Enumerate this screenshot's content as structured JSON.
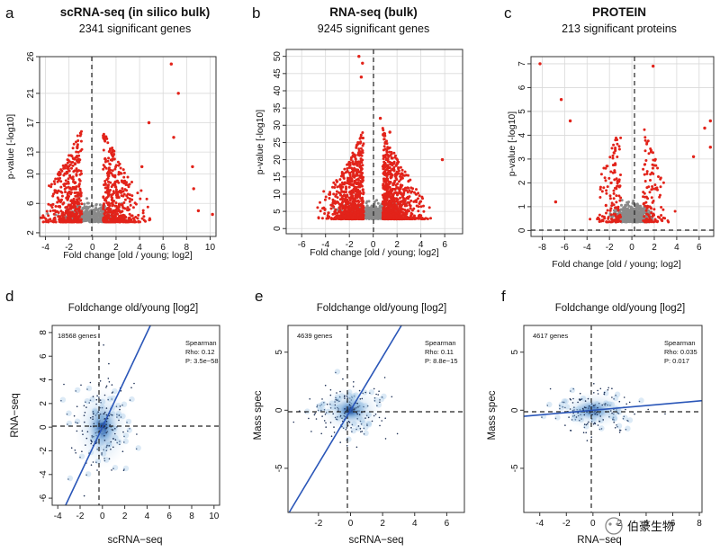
{
  "figure": {
    "colors": {
      "significant": "#e2231a",
      "nonsignificant": "#8a8a8a",
      "density": "#5b9bd5",
      "fit_line": "#2a56b8"
    },
    "panels": [
      {
        "letter": "a",
        "title": "scRNA-seq (in silico bulk)",
        "subtitle": "2341 significant genes"
      },
      {
        "letter": "b",
        "title": "RNA-seq (bulk)",
        "subtitle": "9245 significant genes"
      },
      {
        "letter": "c",
        "title": "PROTEIN",
        "subtitle": "213 significant proteins"
      },
      {
        "letter": "d",
        "title": "Foldchange old/young [log2]",
        "genes": "18568 genes",
        "method": "Spearman",
        "rho": "Rho: 0.12",
        "p": "P: 3.5e−58"
      },
      {
        "letter": "e",
        "title": "Foldchange old/young [log2]",
        "genes": "4639 genes",
        "method": "Spearman",
        "rho": "Rho: 0.11",
        "p": "P: 8.8e−15"
      },
      {
        "letter": "f",
        "title": "Foldchange old/young [log2]",
        "genes": "4617 genes",
        "method": "Spearman",
        "rho": "Rho: 0.035",
        "p": "P: 0.017"
      }
    ],
    "watermark": "伯豪生物"
  },
  "chart_data": [
    {
      "type": "scatter",
      "name": "volcano-scRNA-seq",
      "xlabel": "Fold change [old / young; log2]",
      "ylabel": "p-value [-log10]",
      "xlim": [
        -4.5,
        10.5
      ],
      "ylim": [
        1.5,
        26
      ],
      "xticks": [
        "-4",
        "-2",
        "0",
        "2",
        "4",
        "6",
        "8",
        "10"
      ],
      "yticks": [
        "2",
        "6",
        "10",
        "13",
        "17",
        "21",
        "26"
      ],
      "significant_count": 2341
    },
    {
      "type": "scatter",
      "name": "volcano-RNA-seq-bulk",
      "xlabel": "Fold change [old / young; log2]",
      "ylabel": "p-value [-log10]",
      "xlim": [
        -7.3,
        7.5
      ],
      "ylim": [
        -1.5,
        52
      ],
      "xticks": [
        "-6",
        "-4",
        "-2",
        "0",
        "2",
        "4",
        "6"
      ],
      "yticks": [
        "0",
        "5",
        "10",
        "15",
        "20",
        "25",
        "30",
        "35",
        "40",
        "45",
        "50"
      ],
      "significant_count": 9245
    },
    {
      "type": "scatter",
      "name": "volcano-protein",
      "xlabel": "Fold change [old / young; log2]",
      "ylabel": "p-value [-log10]",
      "xlim": [
        -9,
        7.3
      ],
      "ylim": [
        -0.25,
        7.3
      ],
      "xticks": [
        "-8",
        "-6",
        "-4",
        "-2",
        "0",
        "2",
        "4",
        "6"
      ],
      "yticks": [
        "0",
        "1",
        "2",
        "3",
        "4",
        "5",
        "6",
        "7"
      ],
      "significant_count": 213
    },
    {
      "type": "scatter",
      "name": "scRNA-vs-RNA",
      "title": "Foldchange old/young [log2]",
      "xlabel": "scRNA−seq",
      "ylabel": "RNA−seq",
      "xlim": [
        -4.5,
        10.5
      ],
      "ylim": [
        -6.6,
        8.6
      ],
      "xticks": [
        "-4",
        "-2",
        "0",
        "2",
        "4",
        "6",
        "8",
        "10"
      ],
      "yticks": [
        "-6",
        "-4",
        "-2",
        "0",
        "2",
        "4",
        "6",
        "8"
      ],
      "n_genes": 18568,
      "spearman_rho": 0.12,
      "p_value": "3.5e-58",
      "fit_slope": 2.0
    },
    {
      "type": "scatter",
      "name": "scRNA-vs-MassSpec",
      "title": "Foldchange old/young [log2]",
      "xlabel": "scRNA−seq",
      "ylabel": "Mass spec",
      "xlim": [
        -3.9,
        7.1
      ],
      "ylim": [
        -8.8,
        7.3
      ],
      "xticks": [
        "-2",
        "0",
        "2",
        "4",
        "6"
      ],
      "yticks": [
        "-5",
        "0",
        "5"
      ],
      "n_genes": 4639,
      "spearman_rho": 0.11,
      "p_value": "8.8e-15",
      "fit_slope": 2.3
    },
    {
      "type": "scatter",
      "name": "RNA-vs-MassSpec",
      "title": "Foldchange old/young [log2]",
      "xlabel": "RNA−seq",
      "ylabel": "Mass spec",
      "xlim": [
        -5.2,
        8.2
      ],
      "ylim": [
        -8.8,
        7.3
      ],
      "xticks": [
        "-4",
        "-2",
        "0",
        "2",
        "4",
        "6",
        "8"
      ],
      "yticks": [
        "-5",
        "0",
        "5"
      ],
      "n_genes": 4617,
      "spearman_rho": 0.035,
      "p_value": "0.017",
      "fit_slope": 0.1
    }
  ]
}
